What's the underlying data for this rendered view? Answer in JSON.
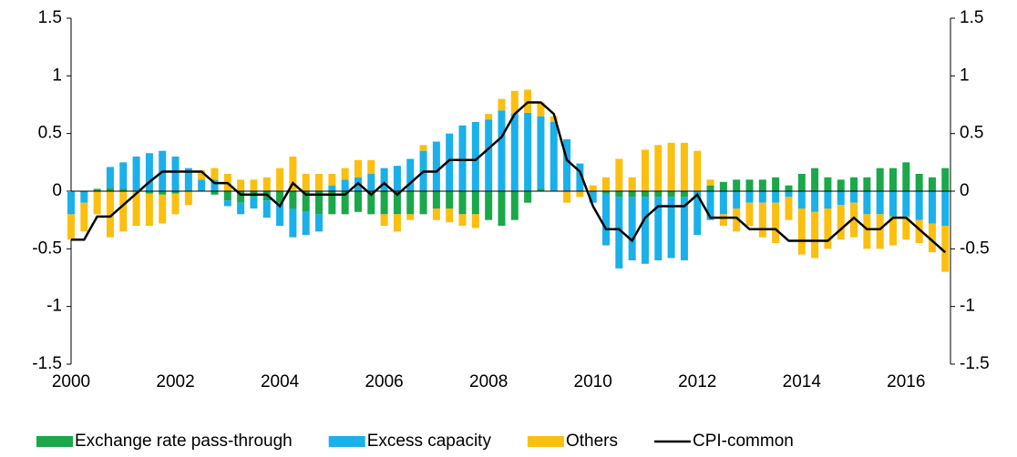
{
  "chart_data": {
    "type": "bar",
    "x": [
      2000,
      2000.25,
      2000.5,
      2000.75,
      2001,
      2001.25,
      2001.5,
      2001.75,
      2002,
      2002.25,
      2002.5,
      2002.75,
      2003,
      2003.25,
      2003.5,
      2003.75,
      2004,
      2004.25,
      2004.5,
      2004.75,
      2005,
      2005.25,
      2005.5,
      2005.75,
      2006,
      2006.25,
      2006.5,
      2006.75,
      2007,
      2007.25,
      2007.5,
      2007.75,
      2008,
      2008.25,
      2008.5,
      2008.75,
      2009,
      2009.25,
      2009.5,
      2009.75,
      2010,
      2010.25,
      2010.5,
      2010.75,
      2011,
      2011.25,
      2011.5,
      2011.75,
      2012,
      2012.25,
      2012.5,
      2012.75,
      2013,
      2013.25,
      2013.5,
      2013.75,
      2014,
      2014.25,
      2014.5,
      2014.75,
      2015,
      2015.25,
      2015.5,
      2015.75,
      2016,
      2016.25,
      2016.5,
      2016.75
    ],
    "xlim": [
      2000,
      2016.85
    ],
    "xticks": [
      2000,
      2002,
      2004,
      2006,
      2008,
      2010,
      2012,
      2014,
      2016
    ],
    "ylim": [
      -1.5,
      1.5
    ],
    "yticks": [
      -1.5,
      -1,
      -0.5,
      0,
      0.5,
      1,
      1.5
    ],
    "series": [
      {
        "name": "Exchange rate pass-through",
        "type": "bar",
        "color": "#1aa84a",
        "values": [
          0,
          0,
          0.02,
          0.03,
          0.02,
          0,
          -0.02,
          -0.03,
          -0.02,
          0,
          0,
          -0.03,
          -0.08,
          -0.1,
          -0.05,
          -0.08,
          -0.1,
          -0.15,
          -0.18,
          -0.2,
          -0.2,
          -0.2,
          -0.18,
          -0.2,
          -0.2,
          -0.2,
          -0.2,
          -0.2,
          -0.15,
          -0.15,
          -0.2,
          -0.2,
          -0.25,
          -0.3,
          -0.25,
          -0.1,
          0.02,
          0,
          0,
          0,
          0,
          -0.02,
          -0.05,
          -0.05,
          -0.05,
          -0.05,
          -0.05,
          -0.05,
          0,
          0.05,
          0.08,
          0.1,
          0.1,
          0.1,
          0.12,
          0.05,
          0.15,
          0.2,
          0.12,
          0.1,
          0.12,
          0.12,
          0.2,
          0.2,
          0.25,
          0.15,
          0.12,
          0.2
        ]
      },
      {
        "name": "Excess capacity",
        "type": "bar",
        "color": "#1ab0ea",
        "values": [
          -0.2,
          -0.1,
          0,
          0.18,
          0.23,
          0.3,
          0.33,
          0.35,
          0.3,
          0.2,
          0.1,
          0.1,
          -0.05,
          -0.1,
          -0.1,
          -0.15,
          -0.2,
          -0.25,
          -0.2,
          -0.15,
          0.05,
          0.1,
          0.12,
          0.15,
          0.2,
          0.22,
          0.28,
          0.35,
          0.43,
          0.5,
          0.57,
          0.6,
          0.62,
          0.7,
          0.67,
          0.68,
          0.63,
          0.6,
          0.45,
          0.24,
          -0.1,
          -0.45,
          -0.62,
          -0.55,
          -0.58,
          -0.55,
          -0.53,
          -0.55,
          -0.38,
          -0.25,
          -0.2,
          -0.15,
          -0.1,
          -0.1,
          -0.1,
          -0.05,
          -0.15,
          -0.18,
          -0.15,
          -0.12,
          -0.1,
          -0.2,
          -0.2,
          -0.22,
          -0.22,
          -0.25,
          -0.28,
          -0.3
        ]
      },
      {
        "name": "Others",
        "type": "bar",
        "color": "#fbbf0f",
        "values": [
          -0.22,
          -0.25,
          -0.2,
          -0.4,
          -0.35,
          -0.3,
          -0.28,
          -0.25,
          -0.18,
          -0.12,
          0.08,
          0.1,
          0.15,
          0.1,
          0.1,
          0.12,
          0.2,
          0.3,
          0.15,
          0.15,
          0.1,
          0.1,
          0.15,
          0.12,
          -0.1,
          -0.15,
          -0.05,
          0.05,
          -0.1,
          -0.12,
          -0.1,
          -0.12,
          0.05,
          0.1,
          0.2,
          0.2,
          0.12,
          0.05,
          -0.1,
          -0.05,
          0.05,
          0.12,
          0.28,
          0.12,
          0.36,
          0.4,
          0.42,
          0.42,
          0.35,
          0.05,
          -0.1,
          -0.2,
          -0.2,
          -0.3,
          -0.35,
          -0.2,
          -0.4,
          -0.4,
          -0.35,
          -0.3,
          -0.3,
          -0.3,
          -0.3,
          -0.25,
          -0.2,
          -0.2,
          -0.25,
          -0.4
        ]
      },
      {
        "name": "CPI-common",
        "type": "line",
        "color": "#000000",
        "values": [
          -0.42,
          -0.42,
          -0.22,
          -0.22,
          -0.12,
          -0.02,
          0.08,
          0.17,
          0.17,
          0.17,
          0.17,
          0.07,
          0.07,
          -0.03,
          -0.03,
          -0.03,
          -0.13,
          0.07,
          -0.03,
          -0.03,
          -0.03,
          -0.03,
          0.07,
          -0.03,
          0.07,
          -0.03,
          0.07,
          0.17,
          0.17,
          0.27,
          0.27,
          0.27,
          0.37,
          0.47,
          0.67,
          0.77,
          0.77,
          0.67,
          0.27,
          0.17,
          -0.13,
          -0.33,
          -0.33,
          -0.43,
          -0.23,
          -0.13,
          -0.13,
          -0.13,
          -0.03,
          -0.23,
          -0.23,
          -0.23,
          -0.33,
          -0.33,
          -0.33,
          -0.43,
          -0.43,
          -0.43,
          -0.43,
          -0.33,
          -0.23,
          -0.33,
          -0.33,
          -0.23,
          -0.23,
          -0.33,
          -0.43,
          -0.53
        ]
      }
    ]
  }
}
